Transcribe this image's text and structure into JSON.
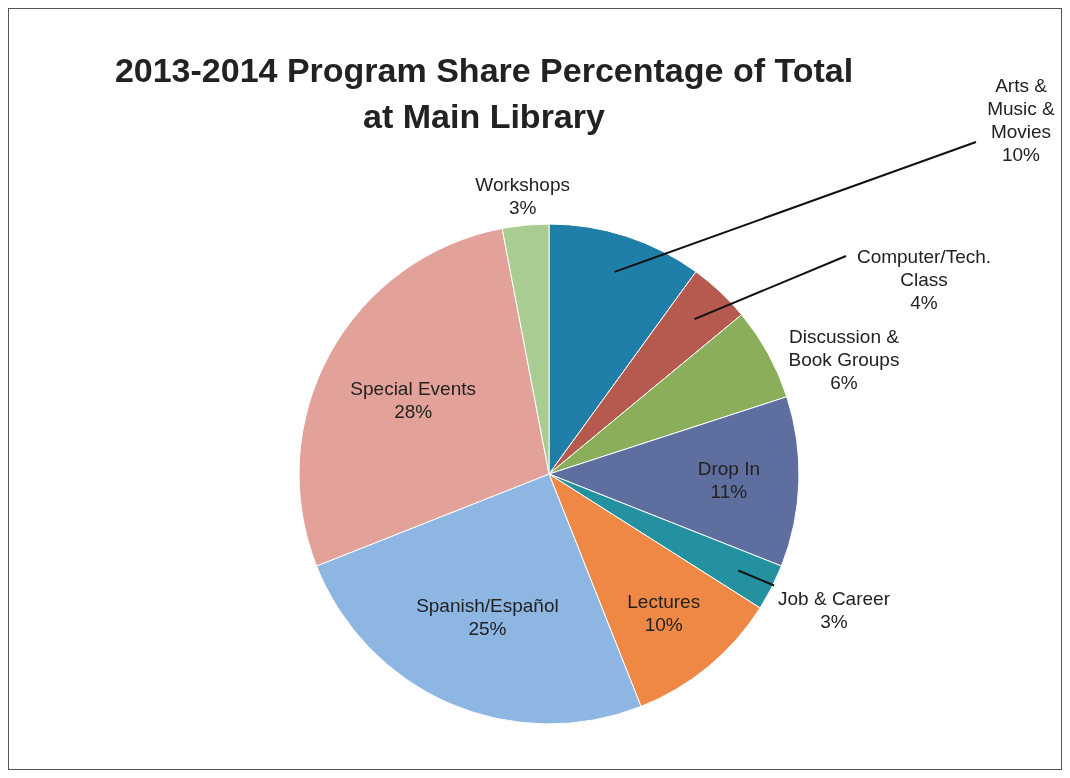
{
  "chart_data": {
    "type": "pie",
    "title": "2013-2014 Program Share Percentage of Total at Main Library",
    "categories": [
      "Arts & Music & Movies",
      "Computer/Tech. Class",
      "Discussion & Book Groups",
      "Drop In",
      "Job & Career",
      "Lectures",
      "Spanish/Español",
      "Special Events",
      "Workshops"
    ],
    "values": [
      10,
      4,
      6,
      11,
      3,
      10,
      25,
      28,
      3
    ],
    "colors": [
      "#1f7fa8",
      "#b65a50",
      "#8aae5a",
      "#5e6e9e",
      "#2391a0",
      "#ee8844",
      "#8db7e2",
      "#e3a299",
      "#a9cc92"
    ],
    "value_labels": [
      "10%",
      "4%",
      "6%",
      "11%",
      "3%",
      "10%",
      "25%",
      "28%",
      "3%"
    ]
  }
}
